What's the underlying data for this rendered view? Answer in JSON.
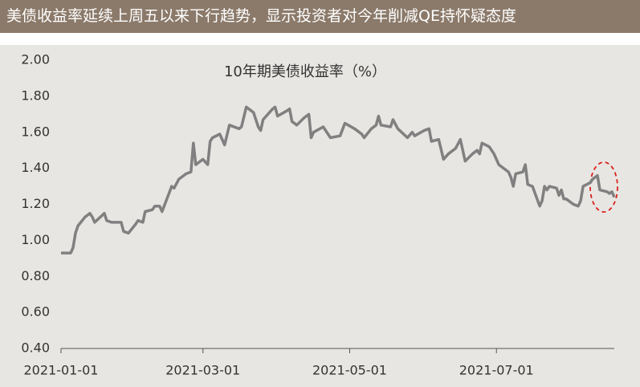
{
  "header": {
    "title": "美债收益率延续上周五以来下行趋势，显示投资者对今年削减QE持怀疑态度"
  },
  "chart_data": {
    "type": "line",
    "title": "10年期美债收益率（%）",
    "x": [
      "2021-01-01",
      "2021-01-05",
      "2021-01-06",
      "2021-01-07",
      "2021-01-08",
      "2021-01-11",
      "2021-01-12",
      "2021-01-13",
      "2021-01-14",
      "2021-01-15",
      "2021-01-19",
      "2021-01-20",
      "2021-01-22",
      "2021-01-26",
      "2021-01-27",
      "2021-01-29",
      "2021-02-01",
      "2021-02-02",
      "2021-02-04",
      "2021-02-05",
      "2021-02-08",
      "2021-02-09",
      "2021-02-11",
      "2021-02-12",
      "2021-02-16",
      "2021-02-17",
      "2021-02-19",
      "2021-02-22",
      "2021-02-24",
      "2021-02-25",
      "2021-02-26",
      "2021-03-01",
      "2021-03-03",
      "2021-03-04",
      "2021-03-05",
      "2021-03-08",
      "2021-03-10",
      "2021-03-12",
      "2021-03-16",
      "2021-03-17",
      "2021-03-19",
      "2021-03-22",
      "2021-03-24",
      "2021-03-25",
      "2021-03-26",
      "2021-03-30",
      "2021-03-31",
      "2021-04-01",
      "2021-04-05",
      "2021-04-06",
      "2021-04-07",
      "2021-04-09",
      "2021-04-12",
      "2021-04-14",
      "2021-04-15",
      "2021-04-16",
      "2021-04-20",
      "2021-04-22",
      "2021-04-23",
      "2021-04-27",
      "2021-04-29",
      "2021-05-03",
      "2021-05-06",
      "2021-05-07",
      "2021-05-10",
      "2021-05-12",
      "2021-05-13",
      "2021-05-14",
      "2021-05-18",
      "2021-05-19",
      "2021-05-21",
      "2021-05-25",
      "2021-05-27",
      "2021-05-28",
      "2021-06-01",
      "2021-06-03",
      "2021-06-04",
      "2021-06-07",
      "2021-06-09",
      "2021-06-11",
      "2021-06-14",
      "2021-06-16",
      "2021-06-18",
      "2021-06-21",
      "2021-06-23",
      "2021-06-24",
      "2021-06-25",
      "2021-06-28",
      "2021-06-30",
      "2021-07-02",
      "2021-07-06",
      "2021-07-07",
      "2021-07-08",
      "2021-07-09",
      "2021-07-12",
      "2021-07-13",
      "2021-07-14",
      "2021-07-16",
      "2021-07-19",
      "2021-07-20",
      "2021-07-21",
      "2021-07-22",
      "2021-07-23",
      "2021-07-26",
      "2021-07-27",
      "2021-07-28",
      "2021-07-29",
      "2021-07-30",
      "2021-08-02",
      "2021-08-04",
      "2021-08-05",
      "2021-08-06",
      "2021-08-09",
      "2021-08-10",
      "2021-08-12",
      "2021-08-13",
      "2021-08-16",
      "2021-08-17",
      "2021-08-18",
      "2021-08-19"
    ],
    "series": [
      {
        "name": "10年期美债收益率",
        "color": "#808080",
        "values": [
          0.93,
          0.93,
          0.96,
          1.04,
          1.08,
          1.13,
          1.14,
          1.15,
          1.13,
          1.1,
          1.15,
          1.11,
          1.1,
          1.1,
          1.05,
          1.04,
          1.09,
          1.11,
          1.1,
          1.16,
          1.17,
          1.19,
          1.19,
          1.16,
          1.3,
          1.29,
          1.34,
          1.37,
          1.38,
          1.54,
          1.42,
          1.45,
          1.42,
          1.55,
          1.57,
          1.59,
          1.53,
          1.64,
          1.62,
          1.63,
          1.74,
          1.71,
          1.63,
          1.61,
          1.67,
          1.73,
          1.74,
          1.69,
          1.72,
          1.73,
          1.66,
          1.64,
          1.68,
          1.7,
          1.57,
          1.6,
          1.63,
          1.59,
          1.57,
          1.58,
          1.65,
          1.62,
          1.59,
          1.57,
          1.62,
          1.64,
          1.69,
          1.64,
          1.63,
          1.67,
          1.62,
          1.57,
          1.6,
          1.58,
          1.61,
          1.62,
          1.55,
          1.56,
          1.45,
          1.48,
          1.51,
          1.56,
          1.44,
          1.48,
          1.5,
          1.48,
          1.54,
          1.52,
          1.48,
          1.42,
          1.38,
          1.35,
          1.3,
          1.37,
          1.38,
          1.42,
          1.31,
          1.3,
          1.19,
          1.22,
          1.3,
          1.28,
          1.3,
          1.29,
          1.25,
          1.28,
          1.23,
          1.23,
          1.2,
          1.19,
          1.22,
          1.3,
          1.32,
          1.34,
          1.36,
          1.28,
          1.27,
          1.26,
          1.27,
          1.24
        ]
      }
    ],
    "xlim": [
      "2021-01-01",
      "2021-08-19"
    ],
    "xticks": [
      "2021-01-01",
      "2021-03-01",
      "2021-05-01",
      "2021-07-01"
    ],
    "ylim": [
      0.4,
      2.0
    ],
    "yticks": [
      {
        "value": 0.4,
        "label": "0.40"
      },
      {
        "value": 0.6,
        "label": "0.60"
      },
      {
        "value": 0.8,
        "label": "0.80"
      },
      {
        "value": 1.0,
        "label": "1.00"
      },
      {
        "value": 1.2,
        "label": "1.20"
      },
      {
        "value": 1.4,
        "label": "1.40"
      },
      {
        "value": 1.6,
        "label": "1.60"
      },
      {
        "value": 1.8,
        "label": "1.80"
      },
      {
        "value": 2.0,
        "label": "2.00"
      }
    ],
    "grid": false
  }
}
